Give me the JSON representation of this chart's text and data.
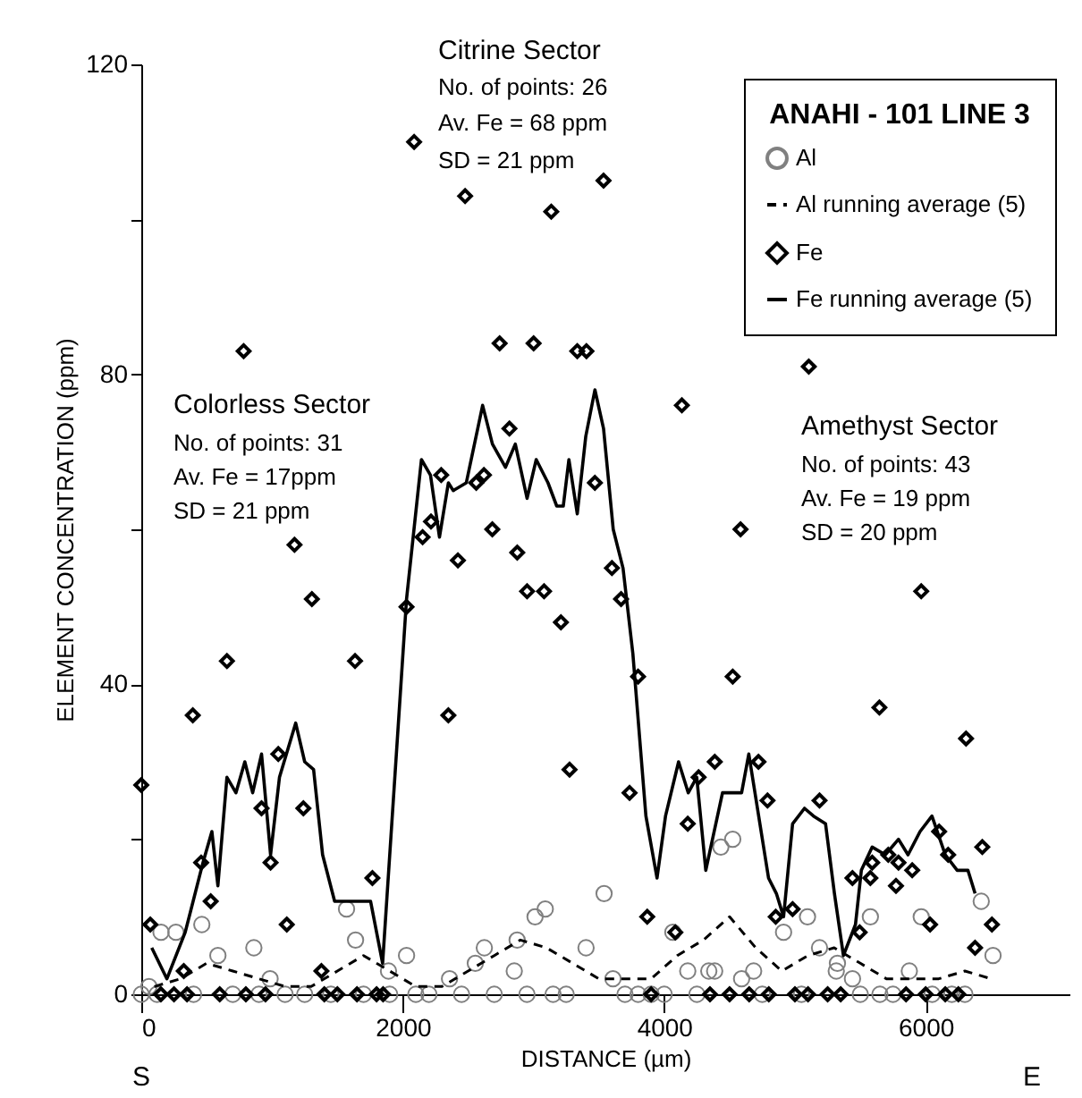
{
  "chart_data": {
    "type": "scatter",
    "xlabel": "DISTANCE (µm)",
    "ylabel": "ELEMENT CONCENTRATION (ppm)",
    "legend_title": "ANAHI - 101 LINE 3",
    "xlim": [
      0,
      7100
    ],
    "ylim": [
      0,
      120
    ],
    "xticks": [
      0,
      2000,
      4000,
      6000
    ],
    "yticks": [
      0,
      {
        "value": 20,
        "label": null
      },
      40,
      {
        "value": 60,
        "label": null
      },
      80,
      {
        "value": 100,
        "label": null
      },
      120
    ],
    "grid": false,
    "legend": "top right",
    "annotations": [
      "Colorless Sector",
      "No. of points: 31",
      "Av. Fe = 17ppm",
      "SD = 21 ppm",
      "Citrine Sector",
      "No. of points: 26",
      "Av. Fe = 68 ppm",
      "SD = 21 ppm",
      "Amethyst Sector",
      "No. of points: 43",
      "Av. Fe = 19 ppm",
      "SD = 20 ppm",
      "S",
      "E"
    ],
    "series": [
      {
        "name": "Al",
        "type": "scatter",
        "marker": "circle",
        "color": "#808080",
        "x": [
          0,
          59,
          120,
          151,
          265,
          400,
          463,
          586,
          700,
          861,
          900,
          985,
          1100,
          1250,
          1450,
          1570,
          1639,
          1700,
          1891,
          1900,
          2029,
          2100,
          2200,
          2358,
          2450,
          2555,
          2624,
          2700,
          2853,
          2875,
          2950,
          3012,
          3090,
          3150,
          3250,
          3402,
          3540,
          3608,
          3700,
          3800,
          3900,
          4000,
          4066,
          4180,
          4250,
          4341,
          4386,
          4433,
          4524,
          4592,
          4684,
          4750,
          4913,
          5050,
          5096,
          5188,
          5316,
          5325,
          5440,
          5500,
          5577,
          5650,
          5750,
          5875,
          5966,
          6050,
          6200,
          6300,
          6425,
          6515
        ],
        "values": [
          0,
          1,
          0,
          8,
          8,
          0,
          9,
          5,
          0,
          6,
          0,
          2,
          0,
          0,
          0,
          11,
          7,
          0,
          3,
          0,
          5,
          0,
          0,
          2,
          0,
          4,
          6,
          0,
          3,
          7,
          0,
          10,
          11,
          0,
          0,
          6,
          13,
          2,
          0,
          0,
          0,
          0,
          8,
          3,
          0,
          3,
          3,
          19,
          20,
          2,
          3,
          0,
          8,
          0,
          10,
          6,
          3,
          4,
          2,
          0,
          10,
          0,
          0,
          3,
          10,
          0,
          0,
          0,
          12,
          5
        ]
      },
      {
        "name": "Al running average (5)",
        "type": "line",
        "line_style": "dashed",
        "color": "#000000",
        "x": [
          100,
          300,
          500,
          700,
          900,
          1100,
          1300,
          1500,
          1700,
          1900,
          2100,
          2300,
          2500,
          2700,
          2900,
          3100,
          3300,
          3500,
          3700,
          3900,
          4100,
          4300,
          4500,
          4700,
          4900,
          5100,
          5300,
          5500,
          5700,
          5900,
          6100,
          6300,
          6500
        ],
        "values": [
          1,
          2,
          4,
          3,
          2,
          1,
          1,
          3,
          5,
          3,
          1,
          1,
          3,
          5,
          7,
          6,
          4,
          2,
          2,
          2,
          5,
          7,
          10,
          6,
          3,
          5,
          6,
          4,
          2,
          2,
          2,
          3,
          2
        ]
      },
      {
        "name": "Fe",
        "type": "scatter",
        "marker": "diamond",
        "color": "#000000",
        "x": [
          0,
          69,
          150,
          250,
          325,
          350,
          394,
          458,
          531,
          600,
          655,
          783,
          800,
          920,
          950,
          989,
          1048,
          1113,
          1172,
          1240,
          1305,
          1378,
          1400,
          1500,
          1635,
          1650,
          1768,
          1800,
          1850,
          2029,
          2087,
          2152,
          2216,
          2294,
          2349,
          2422,
          2477,
          2562,
          2621,
          2685,
          2741,
          2816,
          2876,
          2951,
          3001,
          3081,
          3136,
          3210,
          3276,
          3335,
          3405,
          3470,
          3536,
          3600,
          3670,
          3735,
          3800,
          3870,
          3900,
          4085,
          4135,
          4180,
          4263,
          4350,
          4387,
          4500,
          4524,
          4584,
          4650,
          4721,
          4790,
          4800,
          4853,
          4982,
          5000,
          5100,
          5106,
          5188,
          5250,
          5350,
          5440,
          5495,
          5577,
          5591,
          5646,
          5714,
          5773,
          5792,
          5850,
          5897,
          5966,
          6000,
          6034,
          6103,
          6150,
          6172,
          6250,
          6309,
          6378,
          6433,
          6507
        ],
        "values": [
          27,
          9,
          0,
          0,
          3,
          0,
          36,
          17,
          12,
          0,
          43,
          83,
          0,
          24,
          0,
          17,
          31,
          9,
          58,
          24,
          51,
          3,
          0,
          0,
          43,
          0,
          15,
          0,
          0,
          50,
          110,
          59,
          61,
          67,
          36,
          56,
          103,
          66,
          67,
          60,
          84,
          73,
          57,
          52,
          84,
          52,
          101,
          48,
          29,
          83,
          83,
          66,
          105,
          55,
          51,
          26,
          41,
          10,
          0,
          8,
          76,
          22,
          28,
          0,
          30,
          0,
          41,
          60,
          0,
          30,
          25,
          0,
          10,
          11,
          0,
          0,
          81,
          25,
          0,
          0,
          15,
          8,
          15,
          17,
          37,
          18,
          14,
          17,
          0,
          16,
          52,
          0,
          9,
          21,
          0,
          18,
          0,
          33,
          6,
          19,
          9
        ]
      },
      {
        "name": "Fe running average (5)",
        "type": "line",
        "line_style": "solid",
        "color": "#000000",
        "x": [
          80,
          196,
          336,
          472,
          540,
          586,
          655,
          724,
          792,
          852,
          920,
          989,
          1057,
          1181,
          1250,
          1318,
          1387,
          1479,
          1616,
          1754,
          1846,
          2029,
          2143,
          2212,
          2281,
          2349,
          2386,
          2486,
          2611,
          2686,
          2786,
          2861,
          2951,
          3021,
          3111,
          3178,
          3228,
          3271,
          3335,
          3400,
          3470,
          3536,
          3610,
          3685,
          3760,
          3860,
          3945,
          4010,
          4110,
          4184,
          4249,
          4318,
          4446,
          4592,
          4647,
          4798,
          4858,
          4913,
          4982,
          5073,
          5142,
          5234,
          5302,
          5371,
          5463,
          5508,
          5591,
          5691,
          5792,
          5865,
          5957,
          6048,
          6150,
          6241,
          6323,
          6378
        ],
        "values": [
          6,
          2,
          8,
          17,
          21,
          14,
          28,
          26,
          30,
          26,
          31,
          18,
          28,
          35,
          30,
          29,
          18,
          12,
          12,
          12,
          4,
          51,
          69,
          67,
          59,
          66,
          65,
          66,
          76,
          71,
          68,
          71,
          64,
          69,
          66,
          63,
          63,
          69,
          62,
          72,
          78,
          73,
          60,
          55,
          44,
          23,
          15,
          23,
          30,
          26,
          28,
          16,
          26,
          26,
          31,
          15,
          13,
          10,
          22,
          24,
          23,
          22,
          13,
          5,
          9,
          16,
          19,
          18,
          20,
          18,
          21,
          23,
          18,
          16,
          16,
          13
        ]
      }
    ]
  }
}
